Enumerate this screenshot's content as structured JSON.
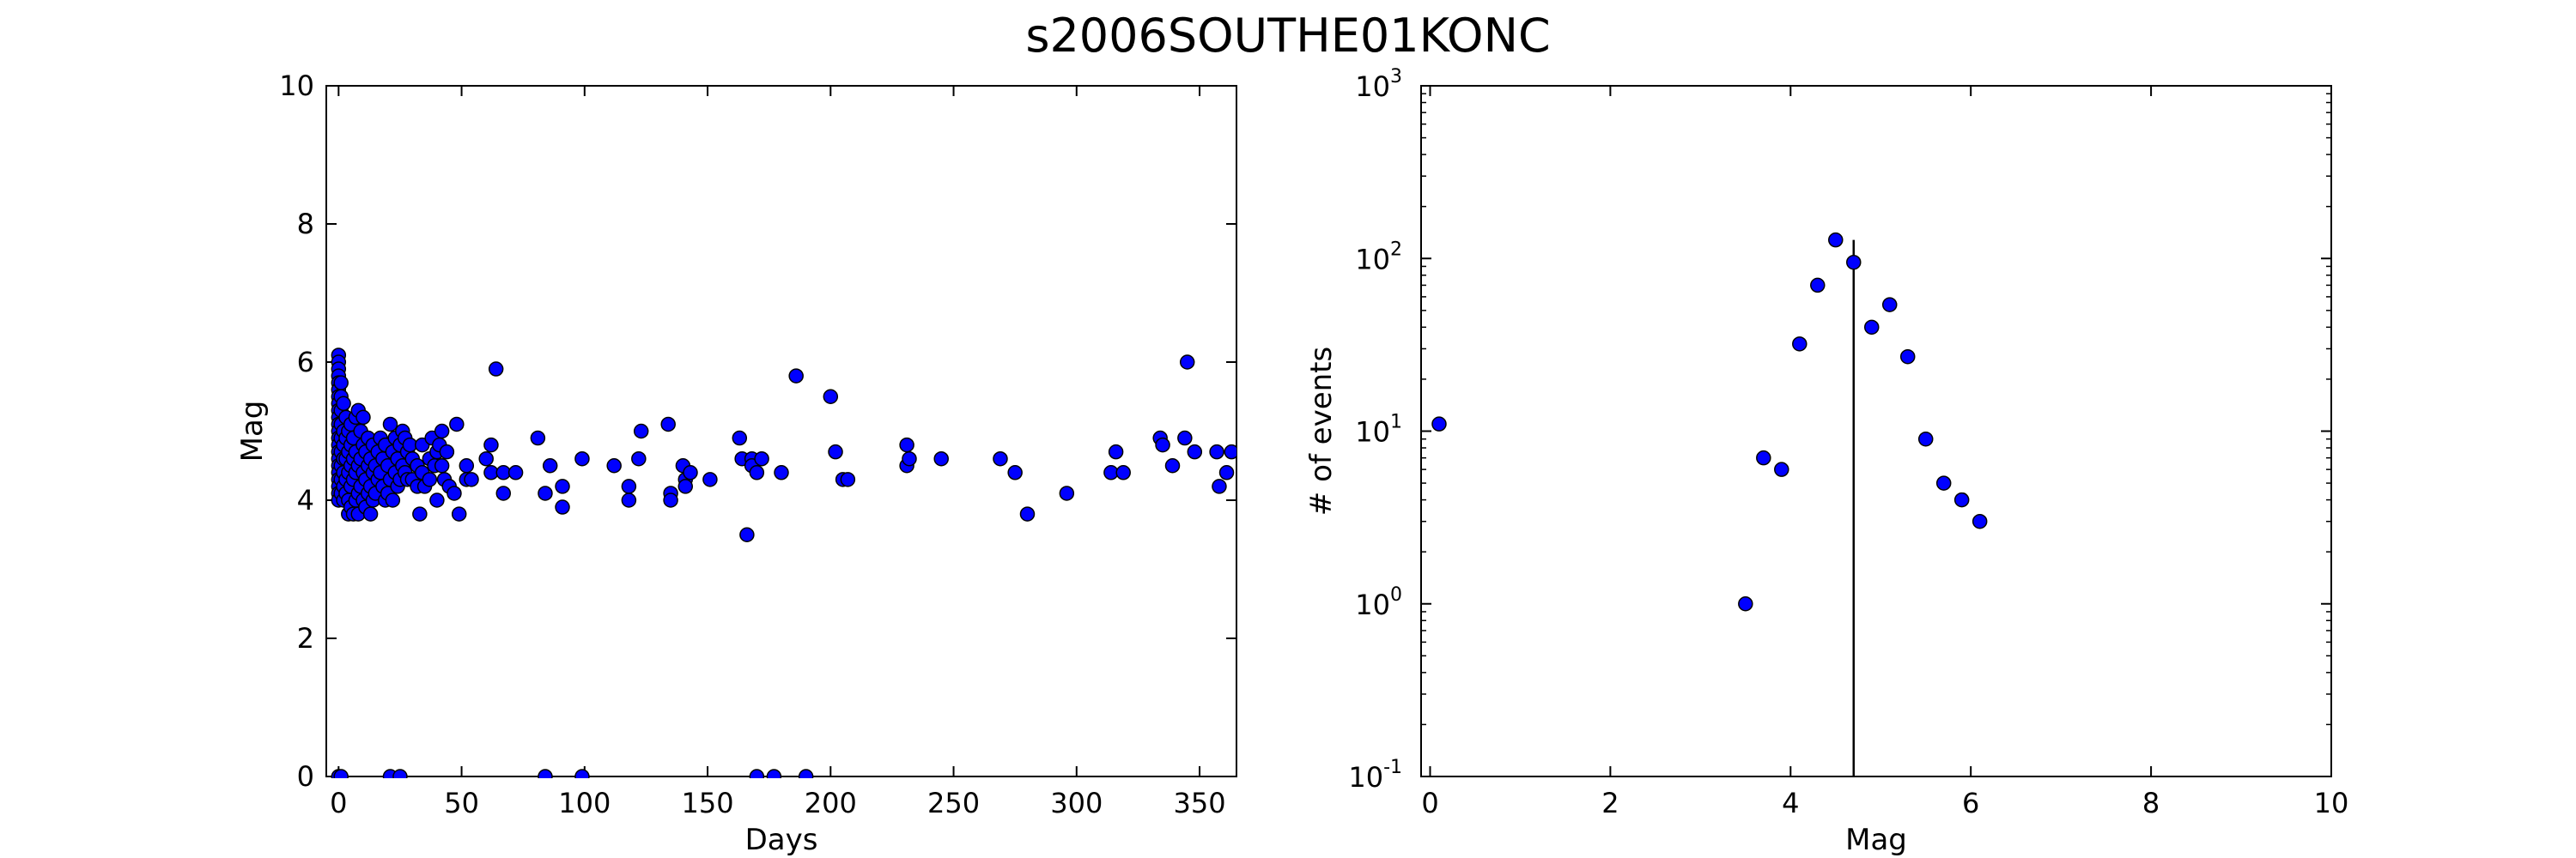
{
  "figure": {
    "title": "s2006SOUTHE01KONC"
  },
  "chart_data": [
    {
      "type": "scatter",
      "xlabel": "Days",
      "ylabel": "Mag",
      "xlim": [
        -5,
        365
      ],
      "ylim": [
        0,
        10
      ],
      "xticks": [
        0,
        50,
        100,
        150,
        200,
        250,
        300,
        350
      ],
      "yticks": [
        0,
        2,
        4,
        6,
        8,
        10
      ],
      "xtick_labels": [
        "0",
        "50",
        "100",
        "150",
        "200",
        "250",
        "300",
        "350"
      ],
      "ytick_labels": [
        "0",
        "2",
        "4",
        "6",
        "8",
        "10"
      ],
      "marker_color": "#0000ff",
      "grid": false,
      "points": [
        [
          0,
          6.1
        ],
        [
          0,
          6.0
        ],
        [
          0,
          5.9
        ],
        [
          0,
          5.8
        ],
        [
          0,
          5.7
        ],
        [
          0,
          5.6
        ],
        [
          0,
          5.5
        ],
        [
          0,
          5.4
        ],
        [
          0,
          5.3
        ],
        [
          0,
          5.2
        ],
        [
          0,
          5.1
        ],
        [
          0,
          5.0
        ],
        [
          0,
          4.9
        ],
        [
          0,
          4.8
        ],
        [
          0,
          4.7
        ],
        [
          0,
          4.6
        ],
        [
          0,
          4.5
        ],
        [
          0,
          4.4
        ],
        [
          0,
          4.3
        ],
        [
          0,
          4.2
        ],
        [
          0,
          4.1
        ],
        [
          0,
          4.0
        ],
        [
          1,
          5.7
        ],
        [
          1,
          5.5
        ],
        [
          1,
          5.3
        ],
        [
          1,
          5.1
        ],
        [
          1,
          4.9
        ],
        [
          1,
          4.7
        ],
        [
          1,
          4.5
        ],
        [
          1,
          4.3
        ],
        [
          1,
          4.1
        ],
        [
          2,
          5.4
        ],
        [
          2,
          5.0
        ],
        [
          2,
          4.8
        ],
        [
          2,
          4.6
        ],
        [
          2,
          4.4
        ],
        [
          2,
          4.2
        ],
        [
          2,
          4.0
        ],
        [
          3,
          5.2
        ],
        [
          3,
          4.9
        ],
        [
          3,
          4.6
        ],
        [
          3,
          4.3
        ],
        [
          3,
          4.1
        ],
        [
          4,
          5.0
        ],
        [
          4,
          4.7
        ],
        [
          4,
          4.4
        ],
        [
          4,
          4.0
        ],
        [
          4,
          3.8
        ],
        [
          5,
          5.1
        ],
        [
          5,
          4.8
        ],
        [
          5,
          4.5
        ],
        [
          5,
          4.2
        ],
        [
          5,
          3.9
        ],
        [
          6,
          4.9
        ],
        [
          6,
          4.6
        ],
        [
          6,
          4.3
        ],
        [
          6,
          3.8
        ],
        [
          7,
          5.2
        ],
        [
          7,
          4.7
        ],
        [
          7,
          4.4
        ],
        [
          7,
          4.0
        ],
        [
          8,
          5.3
        ],
        [
          8,
          4.5
        ],
        [
          8,
          4.1
        ],
        [
          8,
          3.8
        ],
        [
          9,
          5.0
        ],
        [
          9,
          4.6
        ],
        [
          9,
          4.2
        ],
        [
          10,
          5.2
        ],
        [
          10,
          4.8
        ],
        [
          10,
          4.4
        ],
        [
          10,
          4.0
        ],
        [
          11,
          4.7
        ],
        [
          11,
          4.3
        ],
        [
          11,
          3.9
        ],
        [
          12,
          4.9
        ],
        [
          12,
          4.5
        ],
        [
          12,
          4.1
        ],
        [
          13,
          4.6
        ],
        [
          13,
          4.2
        ],
        [
          13,
          3.8
        ],
        [
          14,
          4.8
        ],
        [
          14,
          4.4
        ],
        [
          14,
          4.0
        ],
        [
          15,
          4.5
        ],
        [
          15,
          4.1
        ],
        [
          16,
          4.7
        ],
        [
          16,
          4.3
        ],
        [
          17,
          4.9
        ],
        [
          17,
          4.4
        ],
        [
          18,
          4.6
        ],
        [
          18,
          4.2
        ],
        [
          19,
          4.8
        ],
        [
          19,
          4.0
        ],
        [
          20,
          4.5
        ],
        [
          20,
          4.1
        ],
        [
          21,
          5.1
        ],
        [
          21,
          4.3
        ],
        [
          22,
          4.7
        ],
        [
          22,
          4.0
        ],
        [
          23,
          4.9
        ],
        [
          23,
          4.4
        ],
        [
          24,
          4.6
        ],
        [
          24,
          4.2
        ],
        [
          25,
          4.8
        ],
        [
          25,
          4.3
        ],
        [
          26,
          5.0
        ],
        [
          26,
          4.5
        ],
        [
          27,
          4.9
        ],
        [
          27,
          4.4
        ],
        [
          28,
          4.7
        ],
        [
          28,
          4.3
        ],
        [
          29,
          4.8
        ],
        [
          30,
          4.6
        ],
        [
          30,
          4.3
        ],
        [
          32,
          4.5
        ],
        [
          32,
          4.2
        ],
        [
          33,
          3.8
        ],
        [
          34,
          4.8
        ],
        [
          34,
          4.4
        ],
        [
          35,
          4.2
        ],
        [
          37,
          4.6
        ],
        [
          37,
          4.3
        ],
        [
          38,
          4.9
        ],
        [
          39,
          4.5
        ],
        [
          40,
          4.7
        ],
        [
          40,
          4.0
        ],
        [
          41,
          4.8
        ],
        [
          42,
          5.0
        ],
        [
          42,
          4.5
        ],
        [
          43,
          4.3
        ],
        [
          44,
          4.7
        ],
        [
          45,
          4.2
        ],
        [
          47,
          4.1
        ],
        [
          48,
          5.1
        ],
        [
          49,
          3.8
        ],
        [
          52,
          4.5
        ],
        [
          52,
          4.3
        ],
        [
          54,
          4.3
        ],
        [
          60,
          4.6
        ],
        [
          62,
          4.4
        ],
        [
          62,
          4.8
        ],
        [
          64,
          5.9
        ],
        [
          67,
          4.4
        ],
        [
          67,
          4.1
        ],
        [
          72,
          4.4
        ],
        [
          81,
          4.9
        ],
        [
          84,
          4.1
        ],
        [
          86,
          4.5
        ],
        [
          91,
          3.9
        ],
        [
          91,
          4.2
        ],
        [
          99,
          4.6
        ],
        [
          112,
          4.5
        ],
        [
          118,
          4.2
        ],
        [
          118,
          4.0
        ],
        [
          122,
          4.6
        ],
        [
          123,
          5.0
        ],
        [
          134,
          5.1
        ],
        [
          135,
          4.1
        ],
        [
          135,
          4.0
        ],
        [
          140,
          4.5
        ],
        [
          141,
          4.3
        ],
        [
          141,
          4.2
        ],
        [
          143,
          4.4
        ],
        [
          151,
          4.3
        ],
        [
          163,
          4.9
        ],
        [
          164,
          4.6
        ],
        [
          166,
          3.5
        ],
        [
          168,
          4.6
        ],
        [
          168,
          4.5
        ],
        [
          170,
          4.4
        ],
        [
          172,
          4.6
        ],
        [
          180,
          4.4
        ],
        [
          186,
          5.8
        ],
        [
          200,
          5.5
        ],
        [
          202,
          4.7
        ],
        [
          205,
          4.3
        ],
        [
          207,
          4.3
        ],
        [
          231,
          4.8
        ],
        [
          231,
          4.5
        ],
        [
          232,
          4.6
        ],
        [
          245,
          4.6
        ],
        [
          269,
          4.6
        ],
        [
          275,
          4.4
        ],
        [
          280,
          3.8
        ],
        [
          296,
          4.1
        ],
        [
          314,
          4.4
        ],
        [
          316,
          4.7
        ],
        [
          319,
          4.4
        ],
        [
          334,
          4.9
        ],
        [
          335,
          4.8
        ],
        [
          339,
          4.5
        ],
        [
          344,
          4.9
        ],
        [
          345,
          6.0
        ],
        [
          348,
          4.7
        ],
        [
          357,
          4.7
        ],
        [
          358,
          4.2
        ],
        [
          361,
          4.4
        ],
        [
          363,
          4.7
        ],
        [
          0,
          0
        ],
        [
          1,
          0
        ],
        [
          21,
          0
        ],
        [
          25,
          0
        ],
        [
          84,
          0
        ],
        [
          99,
          0
        ],
        [
          170,
          0
        ],
        [
          177,
          0
        ],
        [
          190,
          0
        ]
      ]
    },
    {
      "type": "scatter",
      "xlabel": "Mag",
      "ylabel": "# of events",
      "xlim": [
        -0.1,
        10
      ],
      "ylim": [
        0.1,
        1000
      ],
      "yscale": "log",
      "xticks": [
        0,
        2,
        4,
        6,
        8,
        10
      ],
      "xtick_labels": [
        "0",
        "2",
        "4",
        "6",
        "8",
        "10"
      ],
      "yticks": [
        0.1,
        1,
        10,
        100,
        1000
      ],
      "ytick_base": [
        "10",
        "10",
        "10",
        "10",
        "10"
      ],
      "ytick_exp": [
        "-1",
        "0",
        "1",
        "2",
        "3"
      ],
      "marker_color": "#0000ff",
      "grid": false,
      "points": [
        [
          0.1,
          11
        ],
        [
          3.5,
          1
        ],
        [
          3.7,
          7
        ],
        [
          3.9,
          6
        ],
        [
          4.1,
          32
        ],
        [
          4.3,
          70
        ],
        [
          4.5,
          128
        ],
        [
          4.7,
          95
        ],
        [
          4.9,
          40
        ],
        [
          5.1,
          54
        ],
        [
          5.3,
          27
        ],
        [
          5.5,
          9
        ],
        [
          5.7,
          5
        ],
        [
          5.9,
          4
        ],
        [
          6.1,
          3
        ]
      ],
      "vline": {
        "x": 4.7,
        "y_top": 128
      }
    }
  ]
}
